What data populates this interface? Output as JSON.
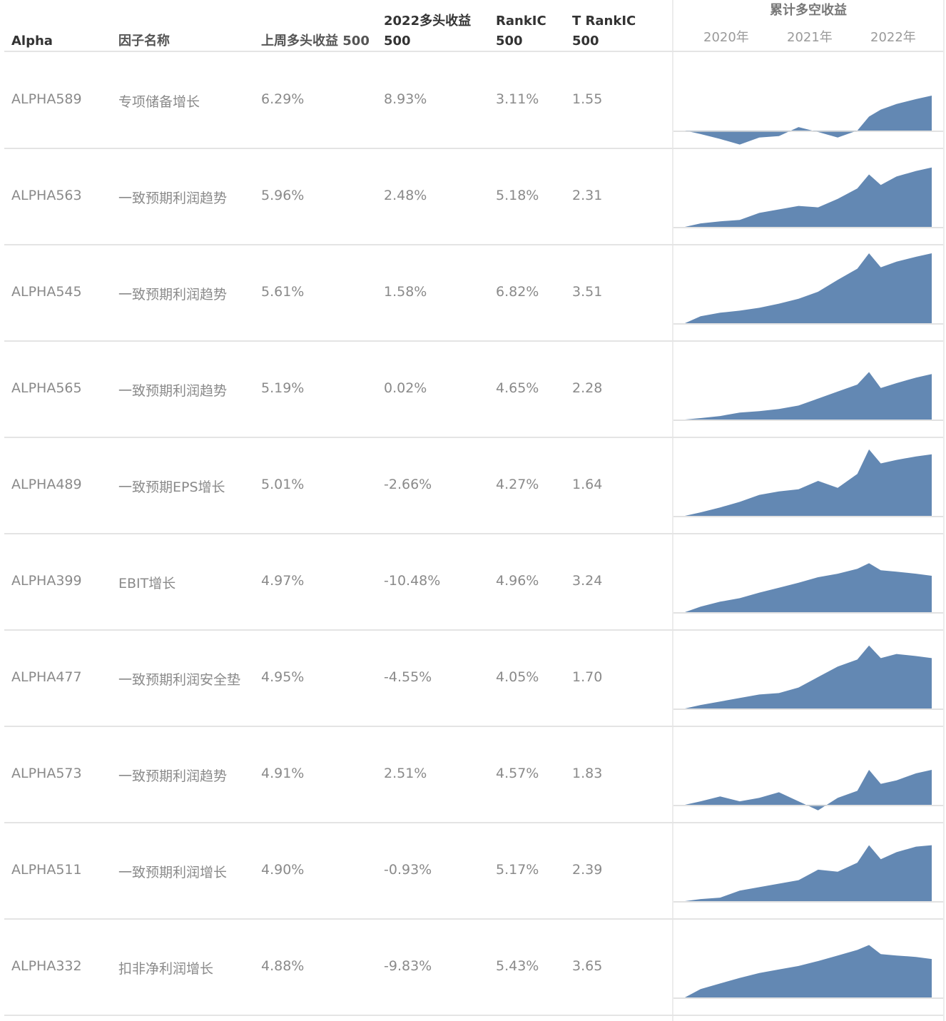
{
  "header": {
    "col_alpha": "Alpha",
    "col_name": "因子名称",
    "col_last_week": "上周多头收益 500",
    "col_2022_l1": "2022多头收益",
    "col_2022_l2": "500",
    "col_rankic_l1": "RankIC",
    "col_rankic_l2": "500",
    "col_trankic_l1": "T RankIC",
    "col_trankic_l2": "500",
    "col_cum": "累计多空收益",
    "years": [
      "2020年",
      "2021年",
      "2022年"
    ]
  },
  "rows": [
    {
      "alpha": "ALPHA589",
      "name": "专项储备增长",
      "last_week": "6.29%",
      "y2022": "8.93%",
      "rankic": "3.11%",
      "trankic": "1.55"
    },
    {
      "alpha": "ALPHA563",
      "name": "一致预期利润趋势",
      "last_week": "5.96%",
      "y2022": "2.48%",
      "rankic": "5.18%",
      "trankic": "2.31"
    },
    {
      "alpha": "ALPHA545",
      "name": "一致预期利润趋势",
      "last_week": "5.61%",
      "y2022": "1.58%",
      "rankic": "6.82%",
      "trankic": "3.51"
    },
    {
      "alpha": "ALPHA565",
      "name": "一致预期利润趋势",
      "last_week": "5.19%",
      "y2022": "0.02%",
      "rankic": "4.65%",
      "trankic": "2.28"
    },
    {
      "alpha": "ALPHA489",
      "name": "一致预期EPS增长",
      "last_week": "5.01%",
      "y2022": "-2.66%",
      "rankic": "4.27%",
      "trankic": "1.64"
    },
    {
      "alpha": "ALPHA399",
      "name": "EBIT增长",
      "last_week": "4.97%",
      "y2022": "-10.48%",
      "rankic": "4.96%",
      "trankic": "3.24"
    },
    {
      "alpha": "ALPHA477",
      "name": "一致预期利润安全垫",
      "last_week": "4.95%",
      "y2022": "-4.55%",
      "rankic": "4.05%",
      "trankic": "1.70"
    },
    {
      "alpha": "ALPHA573",
      "name": "一致预期利润趋势",
      "last_week": "4.91%",
      "y2022": "2.51%",
      "rankic": "4.57%",
      "trankic": "1.83"
    },
    {
      "alpha": "ALPHA511",
      "name": "一致预期利润增长",
      "last_week": "4.90%",
      "y2022": "-0.93%",
      "rankic": "5.17%",
      "trankic": "2.39"
    },
    {
      "alpha": "ALPHA332",
      "name": "扣非净利润增长",
      "last_week": "4.88%",
      "y2022": "-9.83%",
      "rankic": "5.43%",
      "trankic": "3.65"
    }
  ],
  "chart_data": {
    "type": "area",
    "title": "累计多空收益",
    "x": [
      2019.8,
      2020.0,
      2020.25,
      2020.5,
      2020.75,
      2021.0,
      2021.25,
      2021.5,
      2021.75,
      2022.0,
      2022.15,
      2022.3,
      2022.5,
      2022.75,
      2022.95
    ],
    "x_tick_labels": [
      "2020年",
      "2021年",
      "2022年"
    ],
    "color": "#6388b3",
    "series": [
      {
        "values": [
          0,
          -0.05,
          -0.12,
          -0.2,
          -0.1,
          -0.08,
          0.05,
          -0.02,
          -0.1,
          0.0,
          0.2,
          0.3,
          0.38,
          0.45,
          0.5
        ]
      },
      {
        "values": [
          0,
          0.05,
          0.08,
          0.1,
          0.2,
          0.25,
          0.3,
          0.28,
          0.4,
          0.55,
          0.75,
          0.6,
          0.72,
          0.8,
          0.85
        ]
      },
      {
        "values": [
          0,
          0.1,
          0.15,
          0.18,
          0.22,
          0.28,
          0.35,
          0.45,
          0.62,
          0.78,
          1.0,
          0.8,
          0.88,
          0.95,
          1.0
        ]
      },
      {
        "values": [
          0,
          0.02,
          0.05,
          0.1,
          0.12,
          0.15,
          0.2,
          0.3,
          0.4,
          0.5,
          0.68,
          0.45,
          0.52,
          0.6,
          0.65
        ]
      },
      {
        "values": [
          0,
          0.05,
          0.12,
          0.2,
          0.3,
          0.35,
          0.38,
          0.5,
          0.4,
          0.6,
          0.95,
          0.75,
          0.8,
          0.85,
          0.88
        ]
      },
      {
        "values": [
          0,
          0.08,
          0.15,
          0.2,
          0.28,
          0.35,
          0.42,
          0.5,
          0.55,
          0.62,
          0.7,
          0.6,
          0.58,
          0.55,
          0.52
        ]
      },
      {
        "values": [
          0,
          0.05,
          0.1,
          0.15,
          0.2,
          0.22,
          0.3,
          0.45,
          0.6,
          0.7,
          0.9,
          0.72,
          0.78,
          0.75,
          0.72
        ]
      },
      {
        "values": [
          0,
          0.05,
          0.12,
          0.05,
          0.1,
          0.18,
          0.05,
          -0.08,
          0.1,
          0.2,
          0.5,
          0.3,
          0.35,
          0.45,
          0.5
        ]
      },
      {
        "values": [
          0,
          0.03,
          0.05,
          0.15,
          0.2,
          0.25,
          0.3,
          0.45,
          0.42,
          0.55,
          0.8,
          0.6,
          0.7,
          0.78,
          0.8
        ]
      },
      {
        "values": [
          0,
          0.12,
          0.2,
          0.28,
          0.35,
          0.4,
          0.45,
          0.52,
          0.6,
          0.68,
          0.75,
          0.62,
          0.6,
          0.58,
          0.55
        ]
      }
    ]
  }
}
